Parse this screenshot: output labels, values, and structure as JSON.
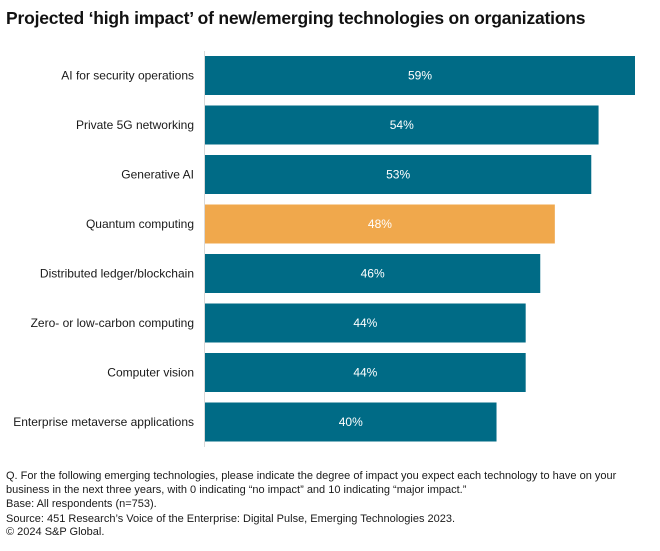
{
  "chart_data": {
    "type": "bar",
    "orientation": "horizontal",
    "title": "Projected ‘high impact’ of new/emerging technologies on organizations",
    "categories": [
      "AI for security operations",
      "Private 5G networking",
      "Generative AI",
      "Quantum computing",
      "Distributed ledger/blockchain",
      "Zero- or low-carbon computing",
      "Computer vision",
      "Enterprise metaverse applications"
    ],
    "values": [
      59,
      54,
      53,
      48,
      46,
      44,
      44,
      40
    ],
    "value_labels": [
      "59%",
      "54%",
      "53%",
      "48%",
      "46%",
      "44%",
      "44%",
      "40%"
    ],
    "unit": "%",
    "highlight_index": 3,
    "colors": {
      "default": "#006B86",
      "highlight": "#F0A84C",
      "axis": "#D9D9D9"
    },
    "xlabel": "",
    "ylabel": "",
    "grid": false,
    "legend": "none"
  },
  "footer": {
    "question": "Q. For the following emerging technologies, please indicate the degree of impact you expect each technology to have on your business in the next three years, with 0 indicating “no impact” and 10 indicating “major impact.”",
    "base": "Base: All respondents (n=753).",
    "source": "Source: 451 Research’s Voice of the Enterprise: Digital Pulse, Emerging Technologies 2023.",
    "copyright": "© 2024 S&P Global."
  }
}
